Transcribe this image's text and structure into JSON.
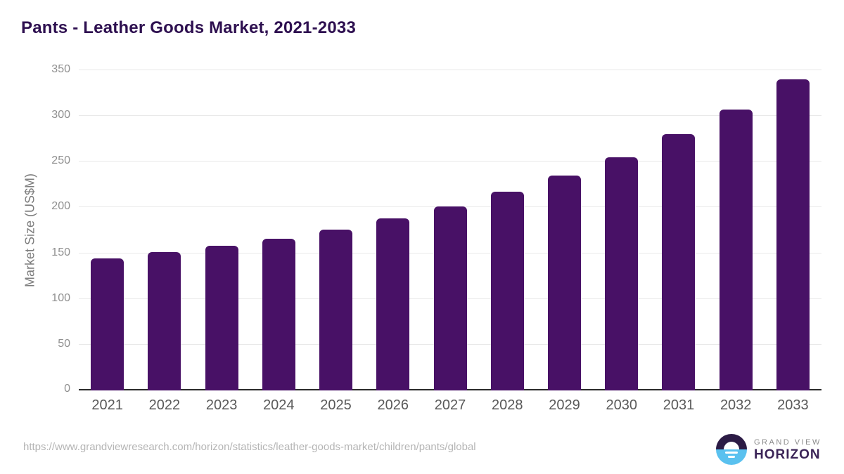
{
  "header": {
    "title": "Pants - Leather Goods Market, 2021-2033",
    "title_color": "#2e1050"
  },
  "chart_data": {
    "type": "bar",
    "title": "Pants - Leather Goods Market, 2021-2033",
    "categories": [
      "2021",
      "2022",
      "2023",
      "2024",
      "2025",
      "2026",
      "2027",
      "2028",
      "2029",
      "2030",
      "2031",
      "2032",
      "2033"
    ],
    "values": [
      144,
      151,
      158,
      166,
      176,
      188,
      201,
      217,
      235,
      255,
      280,
      307,
      340
    ],
    "xlabel": "",
    "ylabel": "Market Size (US$M)",
    "ylim": [
      0,
      350
    ],
    "ytick_step": 50,
    "yticks": [
      0,
      50,
      100,
      150,
      200,
      250,
      300,
      350
    ],
    "grid": true,
    "legend": "none",
    "bar_color": "#481166",
    "gridline_color": "#e9e9e9",
    "axis_line_color": "#2a2a2a",
    "tick_label_color": "#8f8f8f",
    "x_label_color": "#595959"
  },
  "footer": {
    "source_url": "https://www.grandviewresearch.com/horizon/statistics/leather-goods-market/children/pants/global",
    "logo": {
      "line1": "GRAND VIEW",
      "line2": "HORIZON",
      "mark_top_color": "#2c1b45",
      "mark_bottom_color": "#5ac1ef"
    }
  }
}
